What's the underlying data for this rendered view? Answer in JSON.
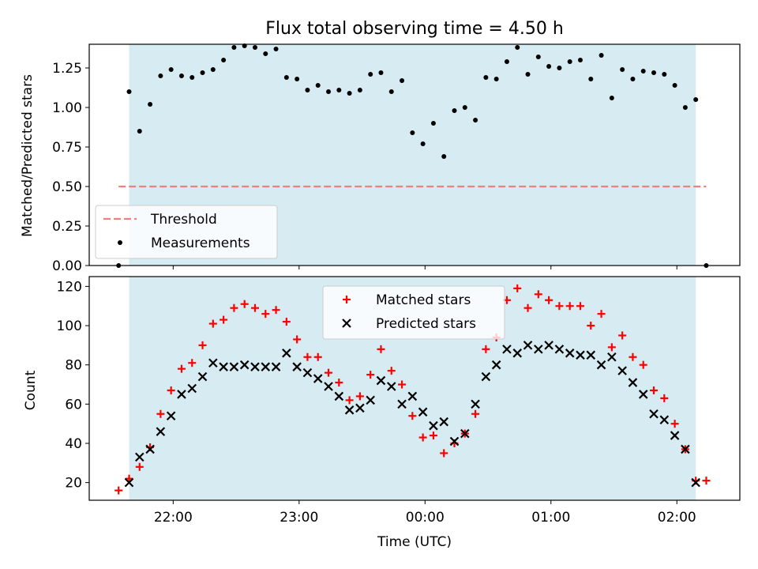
{
  "chart_data": [
    {
      "type": "scatter",
      "title": "Flux total observing time = 4.50 h",
      "xlabel": "",
      "ylabel": "Matched/Predicted stars",
      "xlim": [
        "21:20",
        "02:30"
      ],
      "ylim": [
        0,
        1.4
      ],
      "yticks": [
        "0.00",
        "0.25",
        "0.50",
        "0.75",
        "1.00",
        "1.25"
      ],
      "grid": false,
      "observing_window": [
        "21:39",
        "02:09"
      ],
      "threshold": 0.5,
      "threshold_range": [
        "21:34",
        "02:14"
      ],
      "legend_location": "lower-left",
      "series": [
        {
          "name": "Threshold",
          "kind": "dashed-line",
          "color": "#f08080"
        },
        {
          "name": "Measurements",
          "kind": "dot",
          "color": "#000000",
          "x": [
            "21:34",
            "21:39",
            "21:44",
            "21:49",
            "21:54",
            "21:59",
            "22:04",
            "22:09",
            "22:14",
            "22:19",
            "22:24",
            "22:29",
            "22:34",
            "22:39",
            "22:44",
            "22:49",
            "22:54",
            "22:59",
            "23:04",
            "23:09",
            "23:14",
            "23:19",
            "23:24",
            "23:29",
            "23:34",
            "23:39",
            "23:44",
            "23:49",
            "23:54",
            "23:59",
            "00:04",
            "00:09",
            "00:14",
            "00:19",
            "00:24",
            "00:29",
            "00:34",
            "00:39",
            "00:44",
            "00:49",
            "00:54",
            "00:59",
            "01:04",
            "01:09",
            "01:14",
            "01:19",
            "01:24",
            "01:29",
            "01:34",
            "01:39",
            "01:44",
            "01:49",
            "01:54",
            "01:59",
            "02:04",
            "02:09",
            "02:14"
          ],
          "y": [
            0.0,
            1.1,
            0.85,
            1.02,
            1.2,
            1.24,
            1.2,
            1.19,
            1.22,
            1.24,
            1.3,
            1.38,
            1.39,
            1.38,
            1.34,
            1.37,
            1.19,
            1.18,
            1.11,
            1.14,
            1.1,
            1.11,
            1.09,
            1.11,
            1.21,
            1.22,
            1.1,
            1.17,
            0.84,
            0.77,
            0.9,
            0.69,
            0.98,
            1.0,
            0.92,
            1.19,
            1.18,
            1.29,
            1.38,
            1.21,
            1.32,
            1.26,
            1.25,
            1.29,
            1.3,
            1.18,
            1.33,
            1.06,
            1.24,
            1.18,
            1.23,
            1.22,
            1.21,
            1.14,
            1.0,
            1.05,
            0.0
          ]
        }
      ]
    },
    {
      "type": "scatter",
      "xlabel": "Time (UTC)",
      "ylabel": "Count",
      "xticks": [
        "22:00",
        "23:00",
        "00:00",
        "01:00",
        "02:00"
      ],
      "yticks": [
        "20",
        "40",
        "60",
        "80",
        "100",
        "120"
      ],
      "ylim": [
        11,
        125
      ],
      "grid": false,
      "legend_location": "upper-center",
      "series": [
        {
          "name": "Matched stars",
          "marker": "+",
          "color": "#ff0000",
          "x": [
            "21:34",
            "21:39",
            "21:44",
            "21:49",
            "21:54",
            "21:59",
            "22:04",
            "22:09",
            "22:14",
            "22:19",
            "22:24",
            "22:29",
            "22:34",
            "22:39",
            "22:44",
            "22:49",
            "22:54",
            "22:59",
            "23:04",
            "23:09",
            "23:14",
            "23:19",
            "23:24",
            "23:29",
            "23:34",
            "23:39",
            "23:44",
            "23:49",
            "23:54",
            "23:59",
            "00:04",
            "00:09",
            "00:14",
            "00:19",
            "00:24",
            "00:29",
            "00:34",
            "00:39",
            "00:44",
            "00:49",
            "00:54",
            "00:59",
            "01:04",
            "01:09",
            "01:14",
            "01:19",
            "01:24",
            "01:29",
            "01:34",
            "01:39",
            "01:44",
            "01:49",
            "01:54",
            "01:59",
            "02:04",
            "02:09",
            "02:14"
          ],
          "y": [
            16,
            22,
            28,
            38,
            55,
            67,
            78,
            81,
            90,
            101,
            103,
            109,
            111,
            109,
            106,
            108,
            102,
            93,
            84,
            84,
            76,
            71,
            62,
            64,
            75,
            88,
            77,
            70,
            54,
            43,
            44,
            35,
            40,
            45,
            55,
            88,
            94,
            113,
            119,
            109,
            116,
            113,
            110,
            110,
            110,
            100,
            106,
            89,
            95,
            84,
            80,
            67,
            63,
            50,
            37,
            21,
            21
          ]
        },
        {
          "name": "Predicted stars",
          "marker": "x",
          "color": "#000000",
          "x": [
            "21:39",
            "21:44",
            "21:49",
            "21:54",
            "21:59",
            "22:04",
            "22:09",
            "22:14",
            "22:19",
            "22:24",
            "22:29",
            "22:34",
            "22:39",
            "22:44",
            "22:49",
            "22:54",
            "22:59",
            "23:04",
            "23:09",
            "23:14",
            "23:19",
            "23:24",
            "23:29",
            "23:34",
            "23:39",
            "23:44",
            "23:49",
            "23:54",
            "23:59",
            "00:04",
            "00:09",
            "00:14",
            "00:19",
            "00:24",
            "00:29",
            "00:34",
            "00:39",
            "00:44",
            "00:49",
            "00:54",
            "00:59",
            "01:04",
            "01:09",
            "01:14",
            "01:19",
            "01:24",
            "01:29",
            "01:34",
            "01:39",
            "01:44",
            "01:49",
            "01:54",
            "01:59",
            "02:04",
            "02:09"
          ],
          "y": [
            20,
            33,
            37,
            46,
            54,
            65,
            68,
            74,
            81,
            79,
            79,
            80,
            79,
            79,
            79,
            86,
            79,
            76,
            73,
            69,
            64,
            57,
            58,
            62,
            72,
            69,
            60,
            64,
            56,
            49,
            51,
            41,
            45,
            60,
            74,
            80,
            88,
            86,
            90,
            88,
            90,
            88,
            86,
            85,
            85,
            80,
            84,
            77,
            71,
            65,
            55,
            52,
            44,
            37,
            20
          ]
        }
      ]
    }
  ]
}
